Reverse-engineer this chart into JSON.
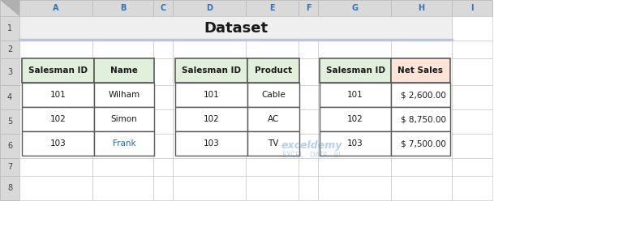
{
  "title": "Dataset",
  "title_fontsize": 13,
  "title_fontweight": "bold",
  "bg_color": "#ffffff",
  "header_bg_color": "#e2efda",
  "net_sales_header_bg": "#fce4d6",
  "cell_bg_color": "#ffffff",
  "border_color": "#5a5a5a",
  "title_bar_bg": "#e8e8e8",
  "title_underline_color": "#b8c4e0",
  "col_header_color": "#1a1a1a",
  "row_text_color": "#1a1a1a",
  "frank_color": "#1a6bcc",
  "table1_headers": [
    "Salesman ID",
    "Name"
  ],
  "table1_data": [
    [
      "101",
      "Wilham"
    ],
    [
      "102",
      "Simon"
    ],
    [
      "103",
      "Frank"
    ]
  ],
  "table2_headers": [
    "Salesman ID",
    "Product"
  ],
  "table2_data": [
    [
      "101",
      "Cable"
    ],
    [
      "102",
      "AC"
    ],
    [
      "103",
      "TV"
    ]
  ],
  "table3_headers": [
    "Salesman ID",
    "Net Sales"
  ],
  "table3_data": [
    [
      "101",
      "$ 2,600.00"
    ],
    [
      "102",
      "$ 8,750.00"
    ],
    [
      "103",
      "$ 7,500.00"
    ]
  ],
  "excel_col_labels": [
    "A",
    "B",
    "C",
    "D",
    "E",
    "F",
    "G",
    "H",
    "I"
  ],
  "excel_row_labels": [
    "1",
    "2",
    "3",
    "4",
    "5",
    "6",
    "7",
    "8"
  ],
  "excel_header_bg": "#d9d9d9",
  "excel_header_text": "#2e75b6",
  "excel_border_color": "#bfbfbf",
  "watermark_text1": "exceldemy",
  "watermark_text2": "EXCEL · DATA · BI"
}
